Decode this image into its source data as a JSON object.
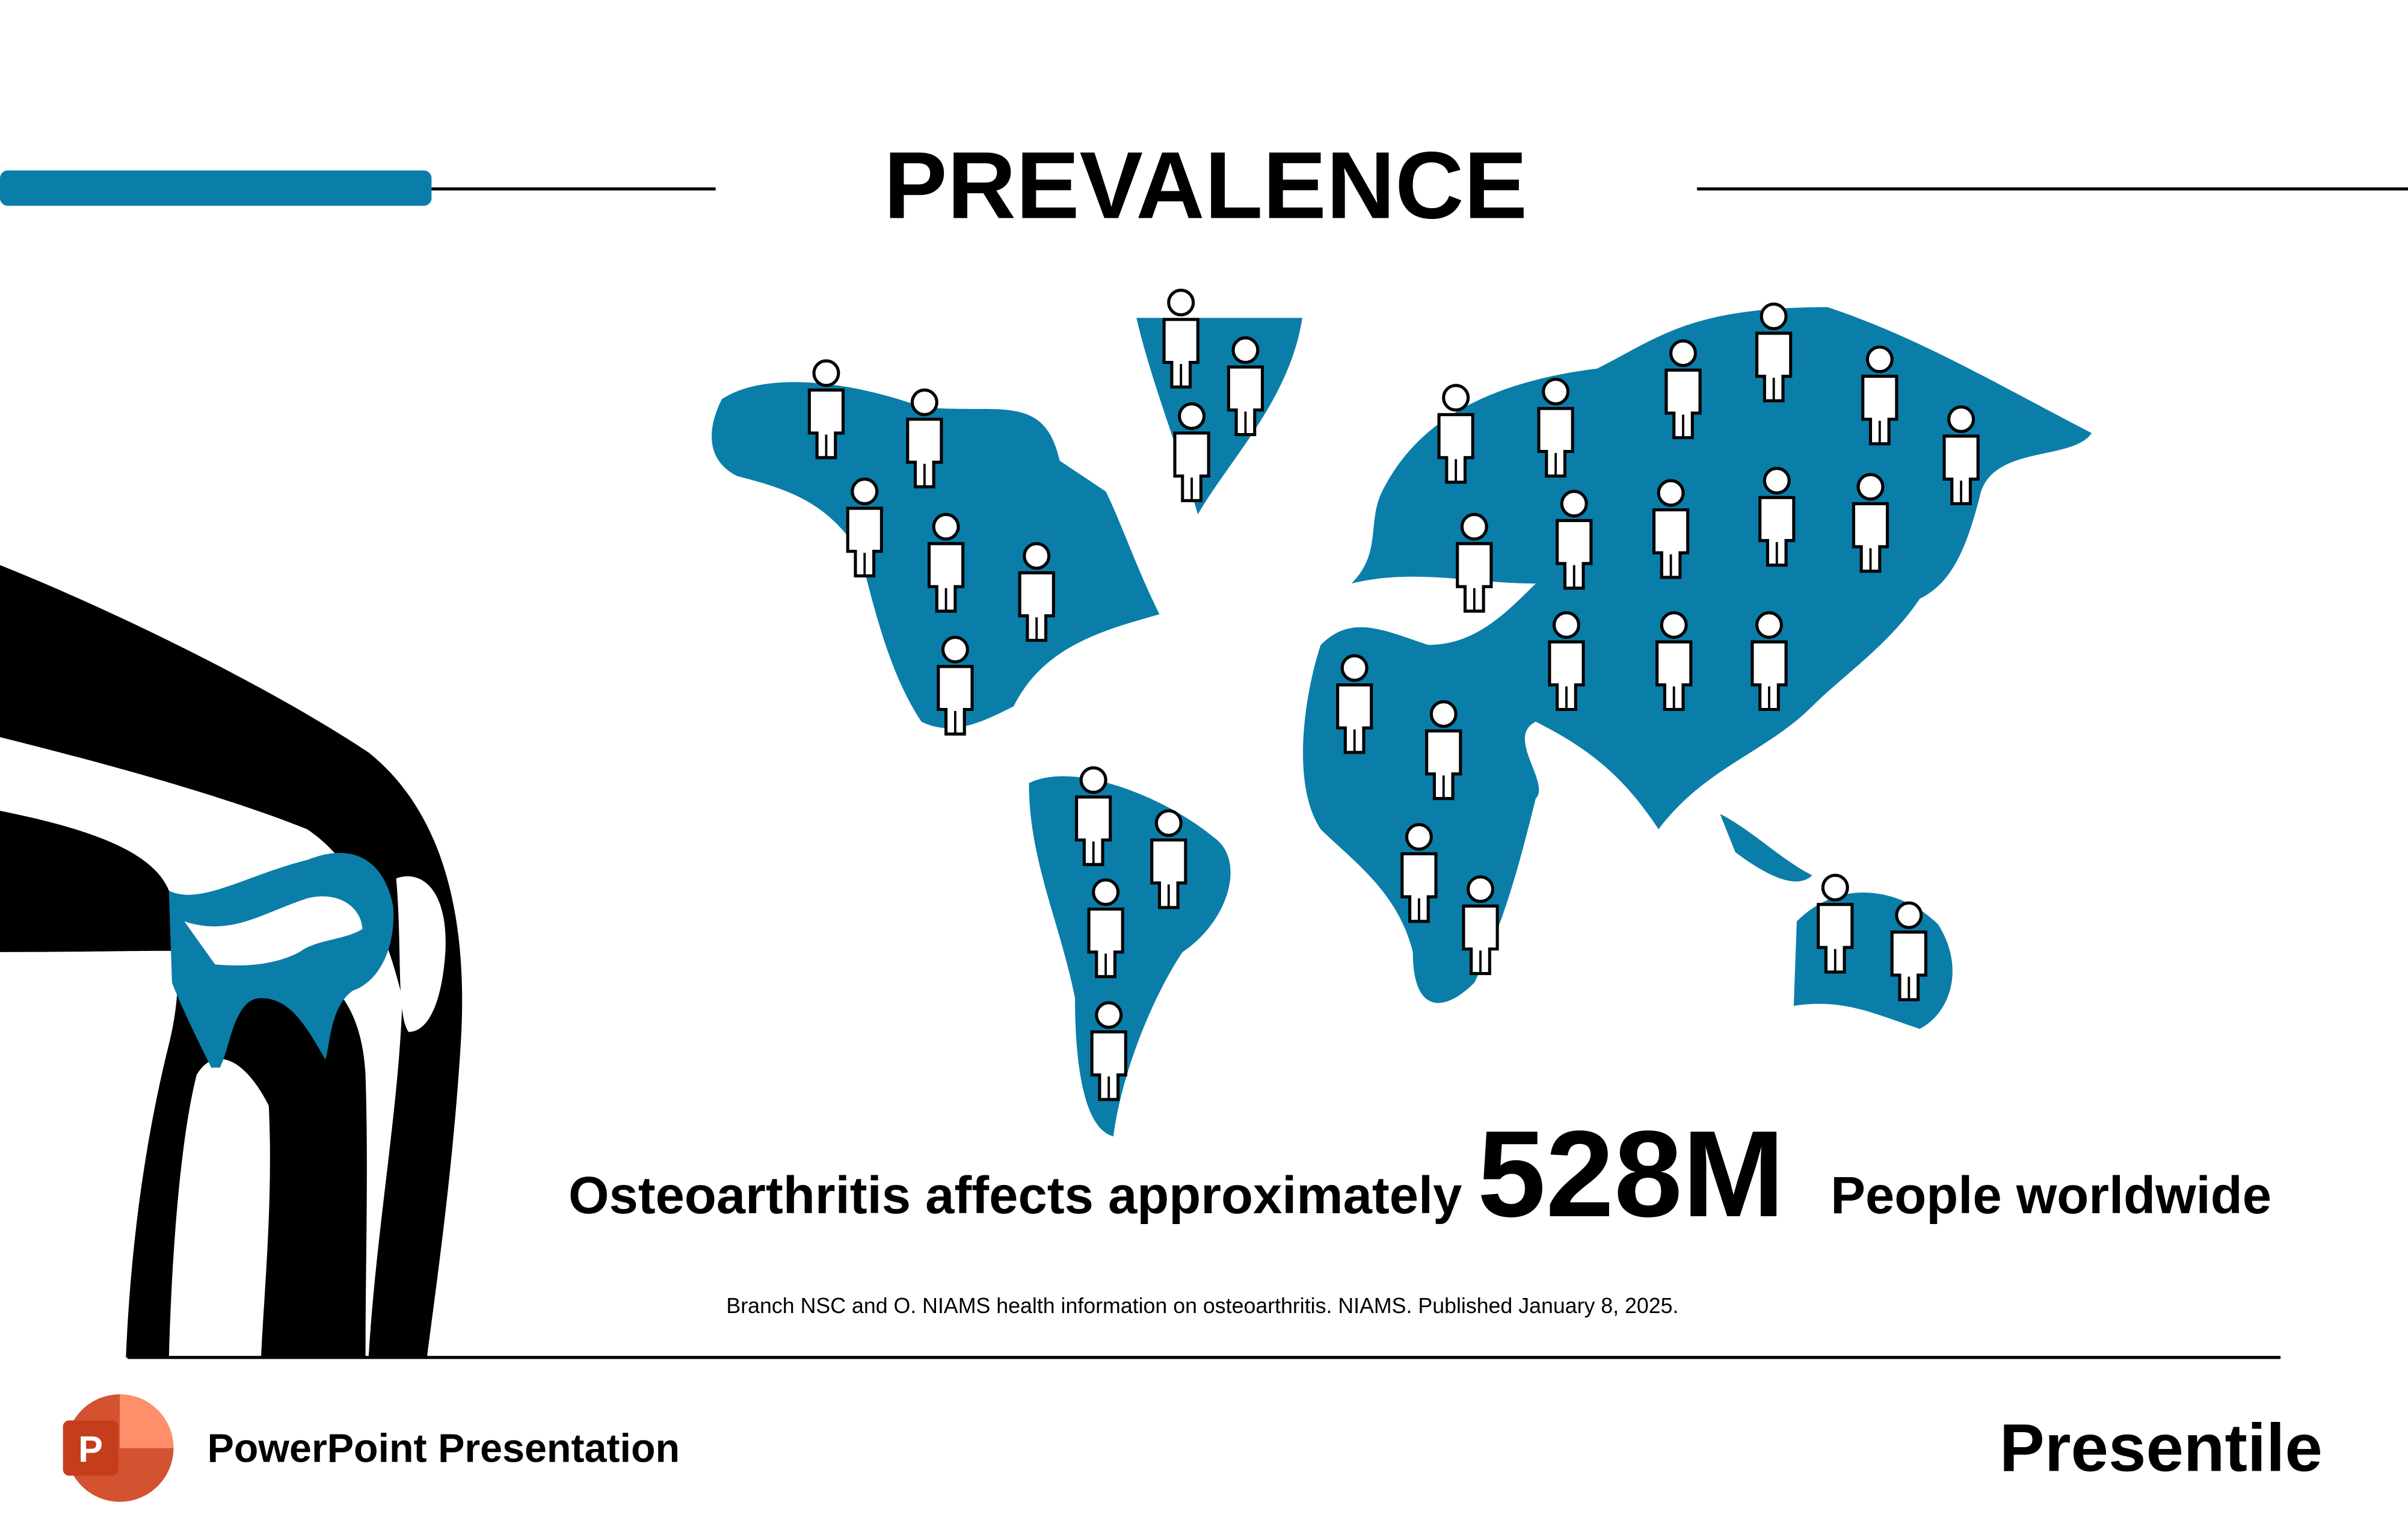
{
  "header": {
    "title": "PREVALENCE"
  },
  "statement": {
    "lead": "Osteoarthritis affects approximately",
    "figure": "528M",
    "tail": "People worldwide"
  },
  "citation": "Branch NSC and O. NIAMS health information on osteoarthritis. NIAMS. Published January 8, 2025.",
  "footer": {
    "icon_letter": "P",
    "label": "PowerPoint Presentation",
    "brand": "Presentile"
  }
}
